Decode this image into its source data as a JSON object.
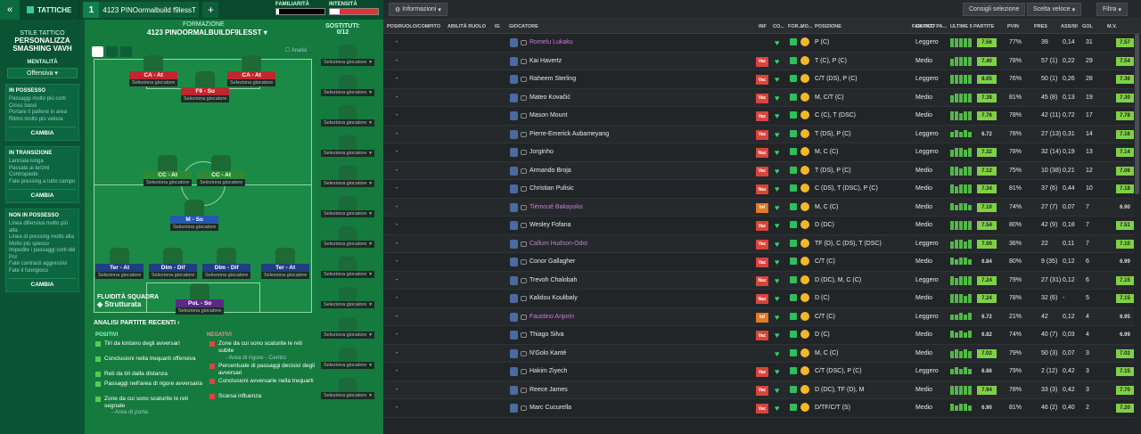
{
  "topbar": {
    "tactics_label": "TATTICHE",
    "slot": "1",
    "tactic_name": "4123 PINOormalbuild f9lessT",
    "familiarity_label": "FAMILIARITÀ",
    "intensity_label": "INTENSITÀ",
    "familiarity": 0.05,
    "intensity": 0.2
  },
  "sidebar": {
    "style_head": "STILE TATTICO",
    "style_name": "PERSONALIZZA SMASHING VAVH",
    "mentality_label": "MENTALITÀ",
    "mentality": "Offensiva",
    "cards": [
      {
        "title": "IN POSSESSO",
        "lines": [
          "Passaggi molto più corti",
          "Cross bassi",
          "Portare il pallone in area",
          "Ritmo molto più veloce"
        ],
        "btn": "CAMBIA"
      },
      {
        "title": "IN TRANSIZIONE",
        "lines": [
          "Lanciala lunga",
          "Passala ai terzini",
          "Contropiede",
          "Fate pressing a tutto campo"
        ],
        "btn": "CAMBIA"
      },
      {
        "title": "NON IN POSSESSO",
        "lines": [
          "Linea difensiva molto più alta",
          "Linea di pressing molto alta",
          "Molto più spesso",
          "Impedite i passaggi corti del Por",
          "Fate contrasti aggressivi",
          "Fate il fuorigioco"
        ],
        "btn": "CAMBIA"
      }
    ]
  },
  "formation": {
    "label": "FORMAZIONE",
    "name": "4123 PINOORMALBUILDF9LESST",
    "subs_label": "SOSTITUTI:",
    "subs_count": "0/12",
    "analysis_toggle": "Analisi",
    "select_label": "Seleziona giocatore",
    "positions": [
      "CA - At",
      "CA - At",
      "F9 - Su",
      "CC - At",
      "CC - At",
      "M - So",
      "Ter - At",
      "Dlm - Dif",
      "Dlm - Dif",
      "Ter - At",
      "PoL - So"
    ],
    "fluidity_label": "FLUIDITÀ SQUADRA",
    "fluidity": "Strutturata"
  },
  "analysis": {
    "title": "ANALISI PARTITE RECENTI",
    "pos_label": "POSITIVI",
    "neg_label": "NEGATIVI",
    "positives": [
      "Tiri da lontano degli avversari",
      "Conclusioni nella trequarti offensiva",
      "Reti da tiri dalla distanza",
      "Passaggi nell'area di rigore avversaria",
      "Zone da cui sono scaturite le reti segnate"
    ],
    "pos_sub": "- Area di porta",
    "negatives": [
      "Zone da cui sono scaturite le reti subite",
      "Percentuale di passaggi decisivi degli avversari",
      "Conclusioni avversarie nella trequarti",
      "Scarsa influenza"
    ],
    "neg_sub": "- Area di rigore - Centro"
  },
  "right": {
    "info_btn": "Informazioni",
    "consigli": "Consigli selezione",
    "scelta": "Scelta veloce",
    "filtra": "Filtra"
  },
  "columns": [
    "POS/RUOLO/COMPITO",
    "ABILITÀ RUOLO",
    "IG",
    "GIOCATORE",
    "INF",
    "CO...",
    "FOR...",
    "MO...",
    "POSIZIONE",
    "FAM TATT",
    "CARICO PA...",
    "ULTIME 5 PARTITE",
    "PVIN",
    "PRES",
    "ASS/90",
    "GOL",
    "M.V."
  ],
  "players": [
    {
      "name": "Romelu Lukaku",
      "loan": true,
      "status": "",
      "pos": "P (C)",
      "load": "Leggero",
      "rat": "7.56",
      "pvin": "77%",
      "pres": "39",
      "ass": "0,14",
      "gol": "31",
      "mv": "7.57"
    },
    {
      "name": "Kai Havertz",
      "loan": false,
      "status": "Vac",
      "pos": "T (C), P (C)",
      "load": "Medio",
      "rat": "7.40",
      "pvin": "78%",
      "pres": "57 (1)",
      "ass": "0,22",
      "gol": "29",
      "mv": "7.54"
    },
    {
      "name": "Raheem Sterling",
      "loan": false,
      "status": "Vac",
      "pos": "C/T (DS), P (C)",
      "load": "Leggero",
      "rat": "8.05",
      "pvin": "76%",
      "pres": "50 (1)",
      "ass": "0,26",
      "gol": "28",
      "mv": "7.36"
    },
    {
      "name": "Mateo Kovačić",
      "loan": false,
      "status": "Vac",
      "pos": "M, C/T (C)",
      "load": "Medio",
      "rat": "7.38",
      "pvin": "81%",
      "pres": "45 (8)",
      "ass": "0,13",
      "gol": "19",
      "mv": "7.30"
    },
    {
      "name": "Mason Mount",
      "loan": false,
      "status": "Vac",
      "pos": "C (C), T (DSC)",
      "load": "Medio",
      "rat": "7.76",
      "pvin": "78%",
      "pres": "42 (11)",
      "ass": "0,72",
      "gol": "17",
      "mv": "7.78"
    },
    {
      "name": "Pierre-Emerick Aubameyang",
      "loan": false,
      "status": "Vac",
      "pos": "T (DS), P (C)",
      "load": "Leggero",
      "rat": "6.72",
      "pvin": "78%",
      "pres": "27 (13)",
      "ass": "0,31",
      "gol": "14",
      "mv": "7.16"
    },
    {
      "name": "Jorginho",
      "loan": false,
      "status": "Naz",
      "pos": "M, C (C)",
      "load": "Leggero",
      "rat": "7.32",
      "pvin": "78%",
      "pres": "32 (14)",
      "ass": "0,19",
      "gol": "13",
      "mv": "7.14"
    },
    {
      "name": "Armando Broja",
      "loan": false,
      "status": "Vac",
      "pos": "T (DS), P (C)",
      "load": "Medio",
      "rat": "7.12",
      "pvin": "75%",
      "pres": "10 (38)",
      "ass": "0,21",
      "gol": "12",
      "mv": "7.06"
    },
    {
      "name": "Christian Pulisic",
      "loan": false,
      "status": "Naz",
      "pos": "C (DS), T (DSC), P (C)",
      "load": "Medio",
      "rat": "7.34",
      "pvin": "81%",
      "pres": "37 (6)",
      "ass": "0,44",
      "gol": "10",
      "mv": "7.18"
    },
    {
      "name": "Tiémoué Bakayoko",
      "loan": true,
      "status": "Inf",
      "pos": "M, C (C)",
      "load": "Medio",
      "rat": "7.10",
      "pvin": "74%",
      "pres": "27 (7)",
      "ass": "0,07",
      "gol": "7",
      "mv": "6.90"
    },
    {
      "name": "Wesley Fofana",
      "loan": false,
      "status": "Vac",
      "pos": "D (DC)",
      "load": "Medio",
      "rat": "7.54",
      "pvin": "80%",
      "pres": "42 (9)",
      "ass": "0,18",
      "gol": "7",
      "mv": "7.51"
    },
    {
      "name": "Callum Hudson-Odoi",
      "loan": true,
      "status": "Vac",
      "pos": "TF (D), C (DS), T (DSC)",
      "load": "Leggero",
      "rat": "7.00",
      "pvin": "36%",
      "pres": "22",
      "ass": "0,11",
      "gol": "7",
      "mv": "7.10"
    },
    {
      "name": "Conor Gallagher",
      "loan": false,
      "status": "Vac",
      "pos": "C/T (C)",
      "load": "Medio",
      "rat": "6.84",
      "pvin": "80%",
      "pres": "9 (35)",
      "ass": "0,12",
      "gol": "6",
      "mv": "6.99"
    },
    {
      "name": "Trevoh Chalobah",
      "loan": false,
      "status": "Naz",
      "pos": "D (DC), M, C (C)",
      "load": "Leggero",
      "rat": "7.24",
      "pvin": "79%",
      "pres": "27 (31)",
      "ass": "0,12",
      "gol": "6",
      "mv": "7.15"
    },
    {
      "name": "Kalidou Koulibaly",
      "loan": false,
      "status": "Naz",
      "pos": "D (C)",
      "load": "Medio",
      "rat": "7.24",
      "pvin": "78%",
      "pres": "32 (6)",
      "ass": "-",
      "gol": "5",
      "mv": "7.15"
    },
    {
      "name": "Faustino Anjorin",
      "loan": true,
      "status": "Inf",
      "pos": "C/T (C)",
      "load": "Leggero",
      "rat": "6.72",
      "pvin": "21%",
      "pres": "42",
      "ass": "0,12",
      "gol": "4",
      "mv": "6.95"
    },
    {
      "name": "Thiago Silva",
      "loan": false,
      "status": "Vac",
      "pos": "D (C)",
      "load": "Medio",
      "rat": "6.82",
      "pvin": "74%",
      "pres": "40 (7)",
      "ass": "0,03",
      "gol": "4",
      "mv": "6.99"
    },
    {
      "name": "N'Golo Kanté",
      "loan": false,
      "status": "",
      "pos": "M, C (C)",
      "load": "Medio",
      "rat": "7.02",
      "pvin": "79%",
      "pres": "50 (3)",
      "ass": "0,07",
      "gol": "3",
      "mv": "7.02"
    },
    {
      "name": "Hakim Ziyech",
      "loan": false,
      "status": "Vac",
      "pos": "C/T (DSC), P (C)",
      "load": "Leggero",
      "rat": "6.86",
      "pvin": "79%",
      "pres": "2 (12)",
      "ass": "0,42",
      "gol": "3",
      "mv": "7.15"
    },
    {
      "name": "Reece James",
      "loan": false,
      "status": "Vac",
      "pos": "D (DC), TF (D), M",
      "load": "Medio",
      "rat": "7.94",
      "pvin": "78%",
      "pres": "33 (3)",
      "ass": "0,42",
      "gol": "3",
      "mv": "7.70"
    },
    {
      "name": "Marc Cucurella",
      "loan": false,
      "status": "Vac",
      "pos": "D/TF/C/T (S)",
      "load": "Medio",
      "rat": "6.90",
      "pvin": "81%",
      "pres": "46 (2)",
      "ass": "0,40",
      "gol": "2",
      "mv": "7.20"
    }
  ],
  "colors": {
    "accent_green": "#7ed145",
    "loan_purple": "#c77dd8",
    "status_red": "#d9443a"
  }
}
